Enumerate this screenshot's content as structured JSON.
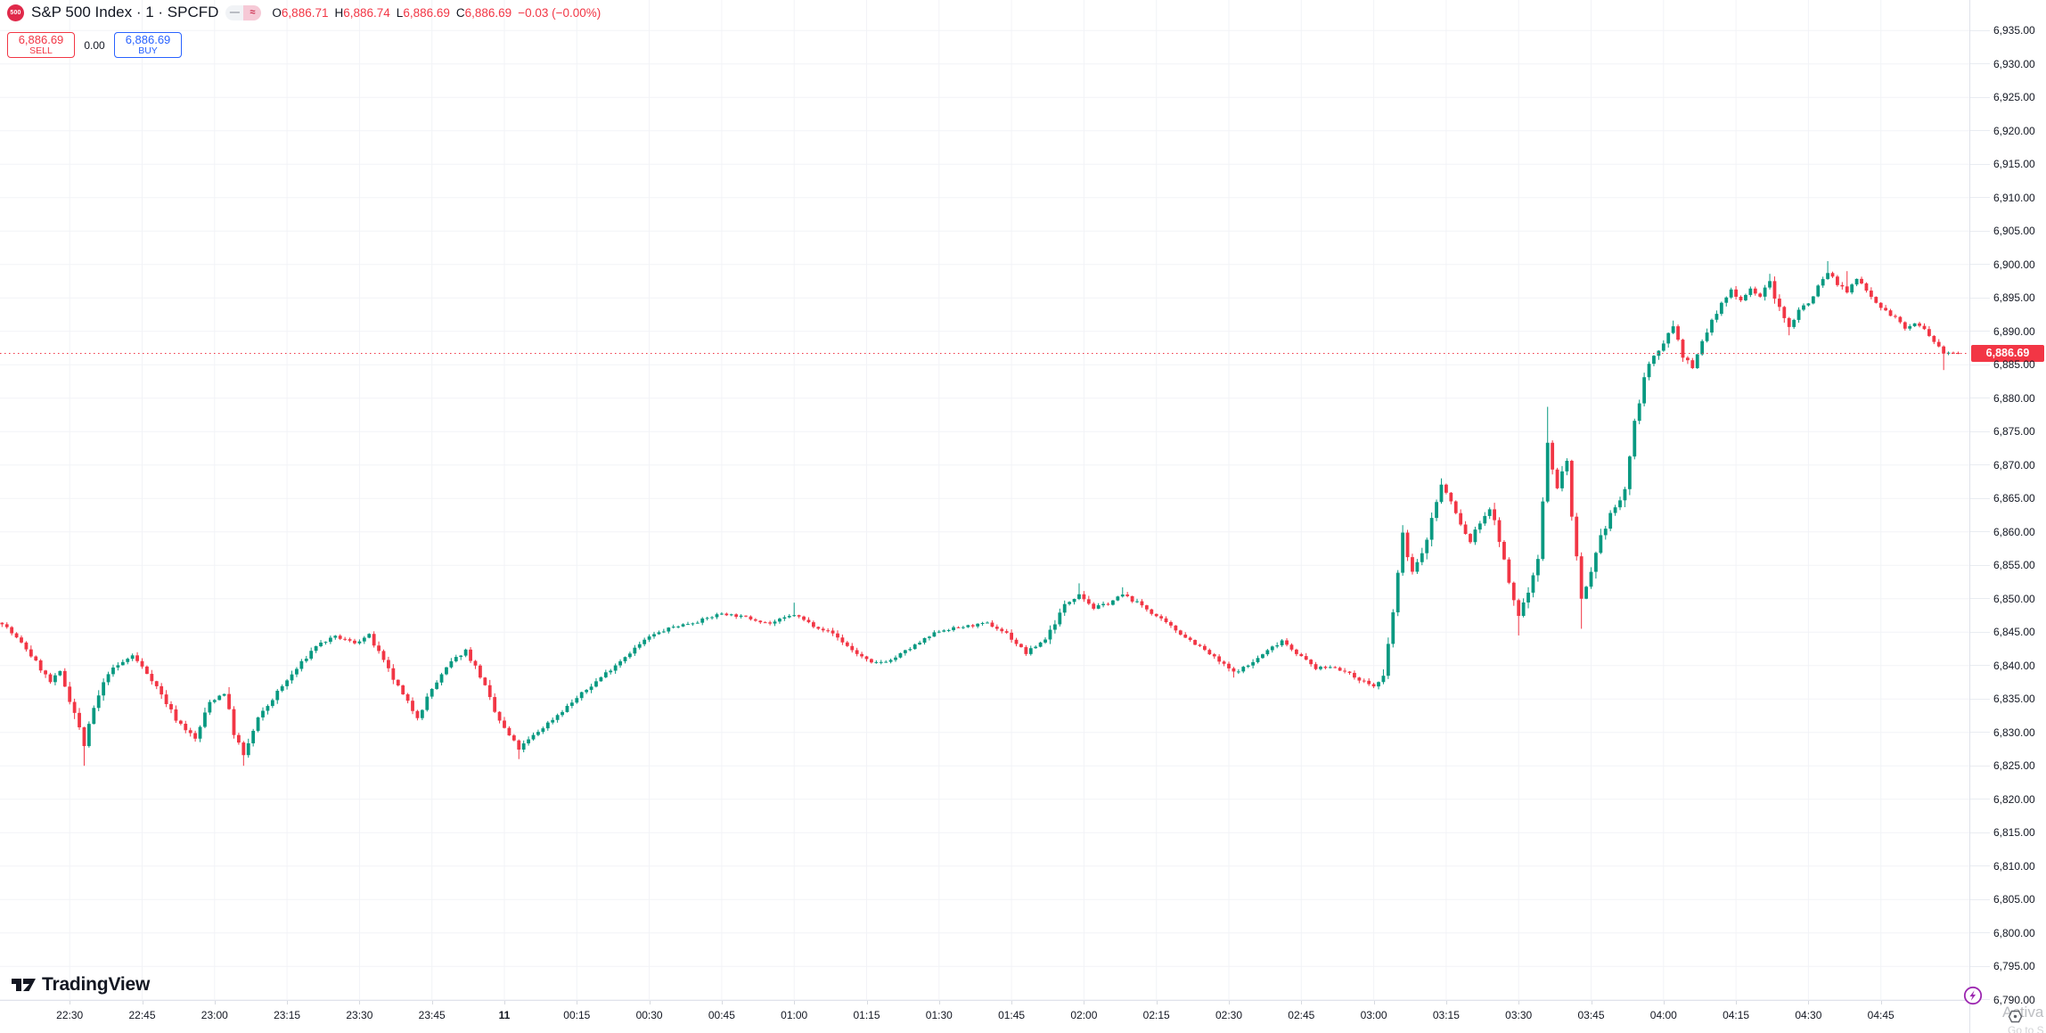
{
  "header": {
    "symbol_logo_text": "500",
    "title": "S&P 500 Index · 1 · SPCFD",
    "status_icons": [
      "dash-icon",
      "approx-icon"
    ],
    "ohlc": {
      "open_label": "O",
      "open": "6,886.71",
      "high_label": "H",
      "high": "6,886.74",
      "low_label": "L",
      "low": "6,886.69",
      "close_label": "C",
      "close": "6,886.69",
      "change": "−0.03 (−0.00%)"
    }
  },
  "trade_panel": {
    "sell_price": "6,886.69",
    "sell_label": "SELL",
    "spread": "0.00",
    "buy_price": "6,886.69",
    "buy_label": "BUY"
  },
  "branding": {
    "logo_text": "TradingView"
  },
  "watermark": {
    "line1": "Activa",
    "line2": "Go to S"
  },
  "colors": {
    "up": "#089981",
    "down": "#F23645",
    "buy_accent": "#2962FF",
    "sell_accent": "#F23645",
    "text": "#131722",
    "grid": "#F2F3F7",
    "axis_border": "#E0E3EB",
    "badge_bg": "#F23645",
    "lightning": "#9C27B0",
    "symbol_logo_bg": "#E0294A"
  },
  "price_axis": {
    "current_price_label": "6,886.69",
    "labels": [
      "6,935.00",
      "6,930.00",
      "6,925.00",
      "6,920.00",
      "6,915.00",
      "6,910.00",
      "6,905.00",
      "6,900.00",
      "6,895.00",
      "6,890.00",
      "6,885.00",
      "6,880.00",
      "6,875.00",
      "6,870.00",
      "6,865.00",
      "6,860.00",
      "6,855.00",
      "6,850.00",
      "6,845.00",
      "6,840.00",
      "6,835.00",
      "6,830.00",
      "6,825.00",
      "6,820.00",
      "6,815.00",
      "6,810.00",
      "6,805.00",
      "6,800.00",
      "6,795.00",
      "6,790.00"
    ]
  },
  "time_axis": {
    "labels": [
      {
        "label": "22:30",
        "time": "22:30",
        "bold": false
      },
      {
        "label": "22:45",
        "time": "22:45",
        "bold": false
      },
      {
        "label": "23:00",
        "time": "23:00",
        "bold": false
      },
      {
        "label": "23:15",
        "time": "23:15",
        "bold": false
      },
      {
        "label": "23:30",
        "time": "23:30",
        "bold": false
      },
      {
        "label": "23:45",
        "time": "23:45",
        "bold": false
      },
      {
        "label": "11",
        "time": "00:00",
        "bold": true
      },
      {
        "label": "00:15",
        "time": "00:15",
        "bold": false
      },
      {
        "label": "00:30",
        "time": "00:30",
        "bold": false
      },
      {
        "label": "00:45",
        "time": "00:45",
        "bold": false
      },
      {
        "label": "01:00",
        "time": "01:00",
        "bold": false
      },
      {
        "label": "01:15",
        "time": "01:15",
        "bold": false
      },
      {
        "label": "01:30",
        "time": "01:30",
        "bold": false
      },
      {
        "label": "01:45",
        "time": "01:45",
        "bold": false
      },
      {
        "label": "02:00",
        "time": "02:00",
        "bold": false
      },
      {
        "label": "02:15",
        "time": "02:15",
        "bold": false
      },
      {
        "label": "02:30",
        "time": "02:30",
        "bold": false
      },
      {
        "label": "02:45",
        "time": "02:45",
        "bold": false
      },
      {
        "label": "03:00",
        "time": "03:00",
        "bold": false
      },
      {
        "label": "03:15",
        "time": "03:15",
        "bold": false
      },
      {
        "label": "03:30",
        "time": "03:30",
        "bold": false
      },
      {
        "label": "03:45",
        "time": "03:45",
        "bold": false
      },
      {
        "label": "04:00",
        "time": "04:00",
        "bold": false
      },
      {
        "label": "04:15",
        "time": "04:15",
        "bold": false
      },
      {
        "label": "04:30",
        "time": "04:30",
        "bold": false
      },
      {
        "label": "04:45",
        "time": "04:45",
        "bold": false
      }
    ]
  },
  "chart_data": {
    "type": "candlestick",
    "title": "S&P 500 Index",
    "symbol": "SPCFD",
    "interval": "1",
    "current_price": 6886.69,
    "last_bar": {
      "open": 6886.71,
      "high": 6886.74,
      "low": 6886.69,
      "close": 6886.69,
      "change": -0.03,
      "change_pct": "−0.00%"
    },
    "visible_price_range": [
      6790,
      6939.6
    ],
    "visible_time_range": [
      "22:16",
      "05:05"
    ],
    "grid": true,
    "price_keypoints": [
      [
        "22:16",
        6846.4
      ],
      [
        "22:21",
        6842.5
      ],
      [
        "22:26",
        6837.5
      ],
      [
        "22:28",
        6839
      ],
      [
        "22:31",
        6833
      ],
      [
        "22:33",
        6828
      ],
      [
        "22:35",
        6833.5
      ],
      [
        "22:38",
        6839
      ],
      [
        "22:43",
        6841.5
      ],
      [
        "22:47",
        6838
      ],
      [
        "22:52",
        6832
      ],
      [
        "22:56",
        6829
      ],
      [
        "22:59",
        6834.5
      ],
      [
        "23:02",
        6836
      ],
      [
        "23:04",
        6830
      ],
      [
        "23:06",
        6826.5
      ],
      [
        "23:09",
        6832
      ],
      [
        "23:13",
        6836
      ],
      [
        "23:17",
        6839.5
      ],
      [
        "23:21",
        6843
      ],
      [
        "23:25",
        6844.3
      ],
      [
        "23:29",
        6843.4
      ],
      [
        "23:32",
        6844.5
      ],
      [
        "23:35",
        6840.5
      ],
      [
        "23:39",
        6835.5
      ],
      [
        "23:42",
        6832.3
      ],
      [
        "23:45",
        6836.5
      ],
      [
        "23:49",
        6840.5
      ],
      [
        "23:52",
        6842.3
      ],
      [
        "23:55",
        6838.5
      ],
      [
        "23:58",
        6833
      ],
      [
        "00:00",
        6830.5
      ],
      [
        "00:03",
        6827.5
      ],
      [
        "00:06",
        6829.5
      ],
      [
        "00:10",
        6832
      ],
      [
        "00:14",
        6834.5
      ],
      [
        "00:18",
        6837
      ],
      [
        "00:22",
        6839.5
      ],
      [
        "00:26",
        6842
      ],
      [
        "00:30",
        6844.3
      ],
      [
        "00:35",
        6845.8
      ],
      [
        "00:40",
        6846.6
      ],
      [
        "00:45",
        6847.8
      ],
      [
        "00:50",
        6847.2
      ],
      [
        "00:55",
        6846.3
      ],
      [
        "01:00",
        6847.6
      ],
      [
        "01:04",
        6846
      ],
      [
        "01:08",
        6844.8
      ],
      [
        "01:12",
        6842.3
      ],
      [
        "01:16",
        6840.3
      ],
      [
        "01:20",
        6840.8
      ],
      [
        "01:25",
        6843
      ],
      [
        "01:30",
        6845.2
      ],
      [
        "01:35",
        6845.8
      ],
      [
        "01:40",
        6846.3
      ],
      [
        "01:44",
        6844.8
      ],
      [
        "01:48",
        6841.8
      ],
      [
        "01:52",
        6844
      ],
      [
        "01:56",
        6849
      ],
      [
        "01:59",
        6850.8
      ],
      [
        "02:02",
        6848.6
      ],
      [
        "02:05",
        6849.3
      ],
      [
        "02:08",
        6850.6
      ],
      [
        "02:12",
        6849
      ],
      [
        "02:16",
        6846.8
      ],
      [
        "02:20",
        6844.8
      ],
      [
        "02:24",
        6842.8
      ],
      [
        "02:28",
        6840.6
      ],
      [
        "02:31",
        6839
      ],
      [
        "02:34",
        6840
      ],
      [
        "02:38",
        6842.2
      ],
      [
        "02:41",
        6843.8
      ],
      [
        "02:45",
        6841.3
      ],
      [
        "02:48",
        6839.6
      ],
      [
        "02:52",
        6839.8
      ],
      [
        "02:56",
        6838.3
      ],
      [
        "03:00",
        6836.9
      ],
      [
        "03:02",
        6838
      ],
      [
        "03:04",
        6848
      ],
      [
        "03:06",
        6859.5
      ],
      [
        "03:08",
        6854
      ],
      [
        "03:10",
        6856.5
      ],
      [
        "03:12",
        6862
      ],
      [
        "03:14",
        6867
      ],
      [
        "03:16",
        6864.5
      ],
      [
        "03:18",
        6861
      ],
      [
        "03:20",
        6858.5
      ],
      [
        "03:22",
        6861.5
      ],
      [
        "03:24",
        6863.5
      ],
      [
        "03:26",
        6859
      ],
      [
        "03:28",
        6852
      ],
      [
        "03:30",
        6847.5
      ],
      [
        "03:32",
        6851
      ],
      [
        "03:34",
        6856.5
      ],
      [
        "03:36",
        6873
      ],
      [
        "03:38",
        6866.5
      ],
      [
        "03:40",
        6871
      ],
      [
        "03:41",
        6862
      ],
      [
        "03:43",
        6849.5
      ],
      [
        "03:45",
        6853.5
      ],
      [
        "03:47",
        6859
      ],
      [
        "03:49",
        6862.8
      ],
      [
        "03:51",
        6864.5
      ],
      [
        "03:52",
        6866.5
      ],
      [
        "03:54",
        6876
      ],
      [
        "03:56",
        6883.5
      ],
      [
        "03:58",
        6886
      ],
      [
        "04:00",
        6888.5
      ],
      [
        "04:02",
        6890.8
      ],
      [
        "04:04",
        6886.5
      ],
      [
        "04:06",
        6884.3
      ],
      [
        "04:08",
        6888.5
      ],
      [
        "04:10",
        6891.5
      ],
      [
        "04:12",
        6894
      ],
      [
        "04:14",
        6896.2
      ],
      [
        "04:16",
        6894.7
      ],
      [
        "04:18",
        6896.4
      ],
      [
        "04:20",
        6895.2
      ],
      [
        "04:22",
        6897.4
      ],
      [
        "04:24",
        6893.2
      ],
      [
        "04:26",
        6890.6
      ],
      [
        "04:28",
        6893.4
      ],
      [
        "04:30",
        6894.2
      ],
      [
        "04:32",
        6896.8
      ],
      [
        "04:34",
        6898.8
      ],
      [
        "04:36",
        6897.2
      ],
      [
        "04:38",
        6895.8
      ],
      [
        "04:40",
        6897.8
      ],
      [
        "04:42",
        6896.4
      ],
      [
        "04:44",
        6894.4
      ],
      [
        "04:46",
        6893
      ],
      [
        "04:48",
        6892
      ],
      [
        "04:50",
        6890.4
      ],
      [
        "04:52",
        6891.2
      ],
      [
        "04:54",
        6890.2
      ],
      [
        "04:56",
        6888.3
      ],
      [
        "04:58",
        6886.6
      ],
      [
        "05:00",
        6886.9
      ],
      [
        "05:01",
        6886.69
      ]
    ],
    "wick_lows": [
      [
        "22:33",
        6825
      ],
      [
        "23:06",
        6825
      ],
      [
        "00:03",
        6826
      ],
      [
        "02:31",
        6838.2
      ],
      [
        "03:30",
        6844.5
      ],
      [
        "03:43",
        6845.5
      ],
      [
        "04:26",
        6889.4
      ],
      [
        "04:58",
        6884.2
      ]
    ],
    "wick_highs": [
      [
        "01:00",
        6849.4
      ],
      [
        "01:59",
        6852.3
      ],
      [
        "02:08",
        6851.7
      ],
      [
        "03:06",
        6861
      ],
      [
        "03:14",
        6868
      ],
      [
        "03:36",
        6878.7
      ],
      [
        "04:02",
        6891.6
      ],
      [
        "04:22",
        6898.6
      ],
      [
        "04:34",
        6900.5
      ],
      [
        "04:38",
        6899
      ]
    ]
  }
}
